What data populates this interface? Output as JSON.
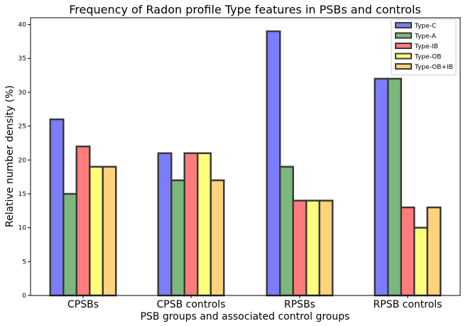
{
  "chart_data": {
    "type": "bar",
    "title": "Frequency of Radon profile Type features in PSBs and controls",
    "xlabel": "PSB groups and associated control groups",
    "ylabel": "Relative number density (%)",
    "ylim": [
      0,
      41
    ],
    "yticks": [
      0,
      5,
      10,
      15,
      20,
      25,
      30,
      35,
      40
    ],
    "grid": false,
    "legend_position": "top-right",
    "categories": [
      "CPSBs",
      "CPSB controls",
      "RPSBs",
      "RPSB controls"
    ],
    "series": [
      {
        "name": "Type-C",
        "color": "#7c7cff",
        "values": [
          26,
          21,
          39,
          32
        ]
      },
      {
        "name": "Type-A",
        "color": "#7cb87c",
        "values": [
          15,
          17,
          19,
          32
        ]
      },
      {
        "name": "Type-IB",
        "color": "#ff7c7c",
        "values": [
          22,
          21,
          14,
          13
        ]
      },
      {
        "name": "Type-OB",
        "color": "#ffff7c",
        "values": [
          19,
          21,
          14,
          10
        ]
      },
      {
        "name": "Type-OB+IB",
        "color": "#ffd27c",
        "values": [
          19,
          17,
          14,
          13
        ]
      }
    ]
  }
}
